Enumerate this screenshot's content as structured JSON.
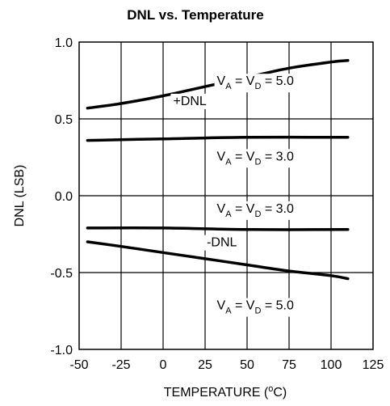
{
  "chart_data": {
    "type": "line",
    "title": "DNL vs. Temperature",
    "xlabel": "TEMPERATURE (",
    "xlabel_unit_sup": "o",
    "xlabel_unit_tail": "C)",
    "ylabel": "DNL (LSB)",
    "xlim": [
      -50,
      125
    ],
    "ylim": [
      -1.0,
      1.0
    ],
    "xticks": [
      -50,
      -25,
      0,
      25,
      50,
      75,
      100,
      125
    ],
    "yticks": [
      -1.0,
      -0.5,
      0.0,
      0.5,
      1.0
    ],
    "xtick_labels": [
      "-50",
      "-25",
      "0",
      "25",
      "50",
      "75",
      "100",
      "125"
    ],
    "ytick_labels": [
      "-1.0",
      "-0.5",
      "0.0",
      "0.5",
      "1.0"
    ],
    "grid": true,
    "series": [
      {
        "x": [
          -45,
          -25,
          0,
          25,
          50,
          75,
          100,
          110
        ],
        "y": [
          0.57,
          0.6,
          0.65,
          0.71,
          0.77,
          0.83,
          0.87,
          0.88
        ]
      },
      {
        "x": [
          -45,
          0,
          50,
          110
        ],
        "y": [
          0.36,
          0.37,
          0.38,
          0.38
        ]
      },
      {
        "x": [
          -45,
          0,
          50,
          110
        ],
        "y": [
          -0.21,
          -0.21,
          -0.22,
          -0.22
        ]
      },
      {
        "x": [
          -45,
          -25,
          0,
          25,
          50,
          75,
          100,
          110
        ],
        "y": [
          -0.3,
          -0.33,
          -0.37,
          -0.41,
          -0.45,
          -0.49,
          -0.52,
          -0.54
        ]
      }
    ],
    "annotations": [
      {
        "id": "ann-5v-top",
        "parts": [
          "V",
          "A",
          " = V",
          "D",
          " = 5.0"
        ],
        "x": 32,
        "y": 0.72
      },
      {
        "id": "ann-plus-dnl",
        "parts": [
          "+DNL"
        ],
        "x": 6,
        "y": 0.59
      },
      {
        "id": "ann-3v-top",
        "parts": [
          "V",
          "A",
          " = V",
          "D",
          " = 3.0"
        ],
        "x": 32,
        "y": 0.23
      },
      {
        "id": "ann-3v-bottom",
        "parts": [
          "V",
          "A",
          " = V",
          "D",
          " = 3.0"
        ],
        "x": 32,
        "y": -0.11
      },
      {
        "id": "ann-minus-dnl",
        "parts": [
          "-DNL"
        ],
        "x": 26,
        "y": -0.33
      },
      {
        "id": "ann-5v-bottom",
        "parts": [
          "V",
          "A",
          " = V",
          "D",
          " = 5.0"
        ],
        "x": 32,
        "y": -0.74
      }
    ]
  }
}
